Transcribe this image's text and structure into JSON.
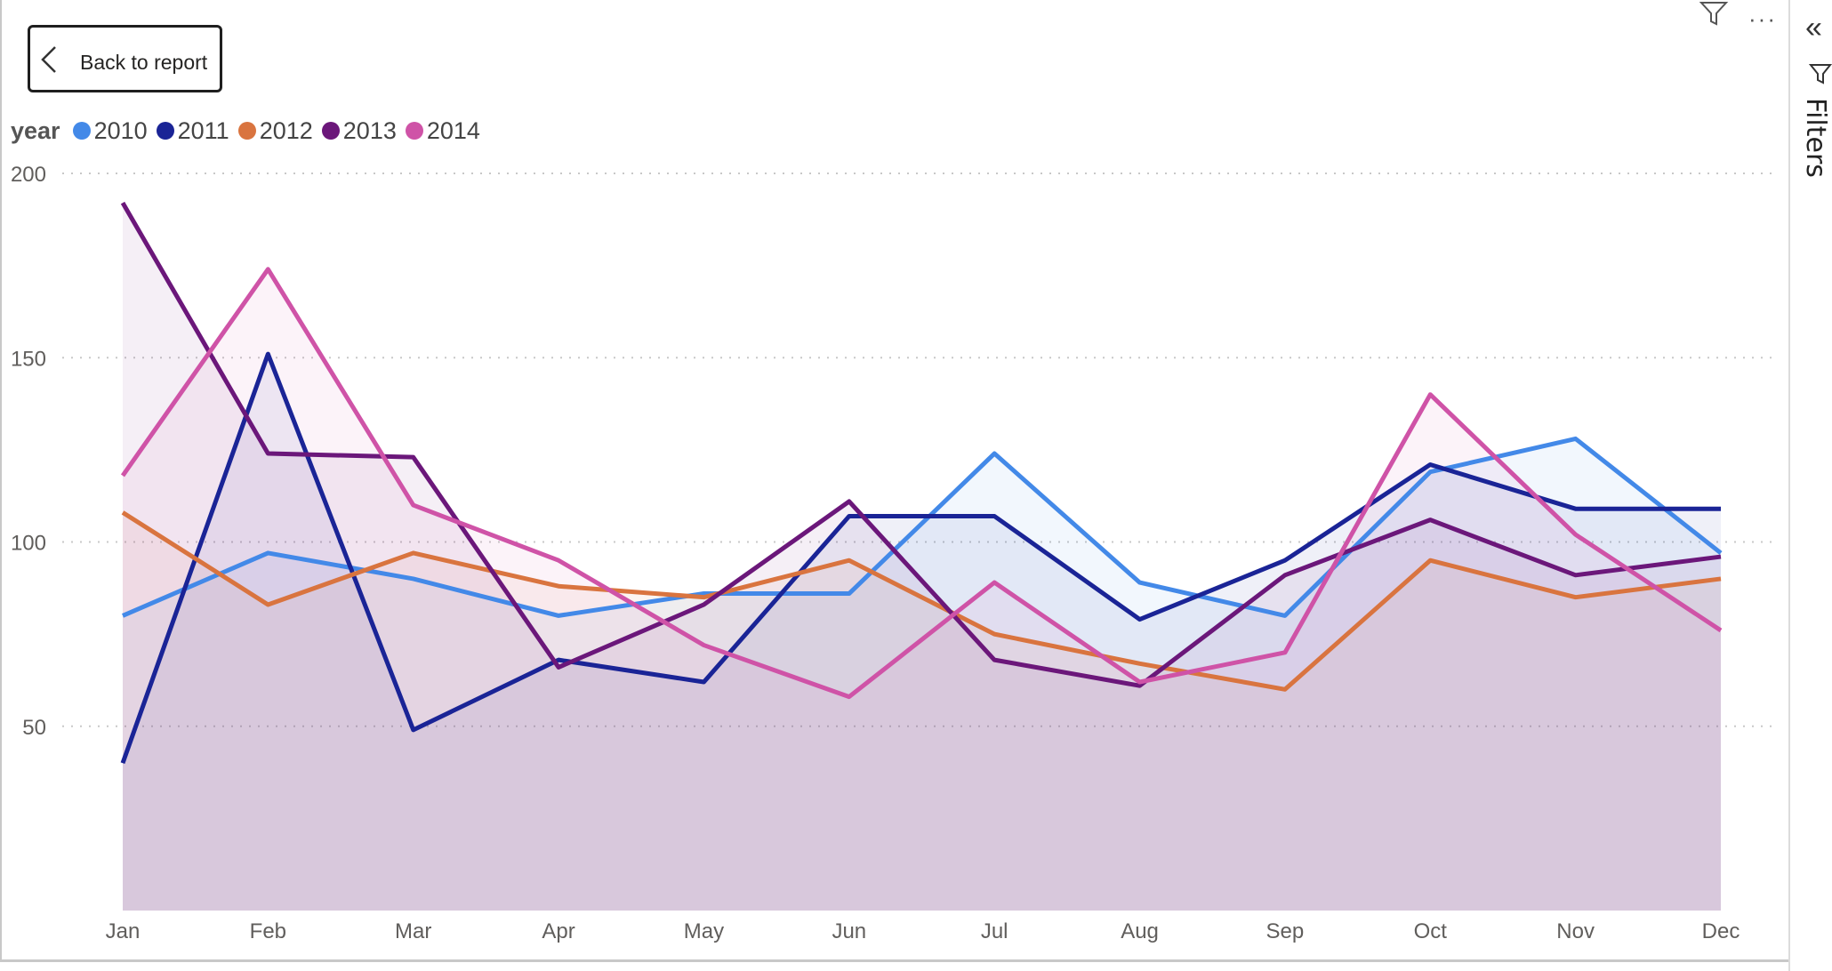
{
  "back_button": {
    "label": "Back to report"
  },
  "filters_pane": {
    "label": "Filters"
  },
  "icons": {
    "filter": "filter-icon",
    "more": "more-options-icon",
    "collapse": "double-chevron-left-icon",
    "back": "chevron-left-icon"
  },
  "chart_data": {
    "type": "area",
    "legend": {
      "title": "year",
      "placement": "top-left"
    },
    "categories": [
      "Jan",
      "Feb",
      "Mar",
      "Apr",
      "May",
      "Jun",
      "Jul",
      "Aug",
      "Sep",
      "Oct",
      "Nov",
      "Dec"
    ],
    "ylim": [
      0,
      200
    ],
    "yticks": [
      50,
      100,
      150,
      200
    ],
    "grid": true,
    "series": [
      {
        "name": "2010",
        "color": "#4389e8",
        "values": [
          80,
          97,
          90,
          80,
          86,
          86,
          124,
          89,
          80,
          119,
          128,
          97
        ]
      },
      {
        "name": "2011",
        "color": "#1a2496",
        "values": [
          40,
          151,
          49,
          68,
          62,
          107,
          107,
          79,
          95,
          121,
          109,
          109
        ]
      },
      {
        "name": "2012",
        "color": "#d9743f",
        "values": [
          108,
          83,
          97,
          88,
          85,
          95,
          75,
          67,
          60,
          95,
          85,
          90
        ]
      },
      {
        "name": "2013",
        "color": "#6b177a",
        "values": [
          192,
          124,
          123,
          66,
          83,
          111,
          68,
          61,
          91,
          106,
          91,
          96
        ]
      },
      {
        "name": "2014",
        "color": "#cf53a7",
        "values": [
          118,
          174,
          110,
          95,
          72,
          58,
          89,
          62,
          70,
          140,
          102,
          76
        ]
      }
    ]
  }
}
